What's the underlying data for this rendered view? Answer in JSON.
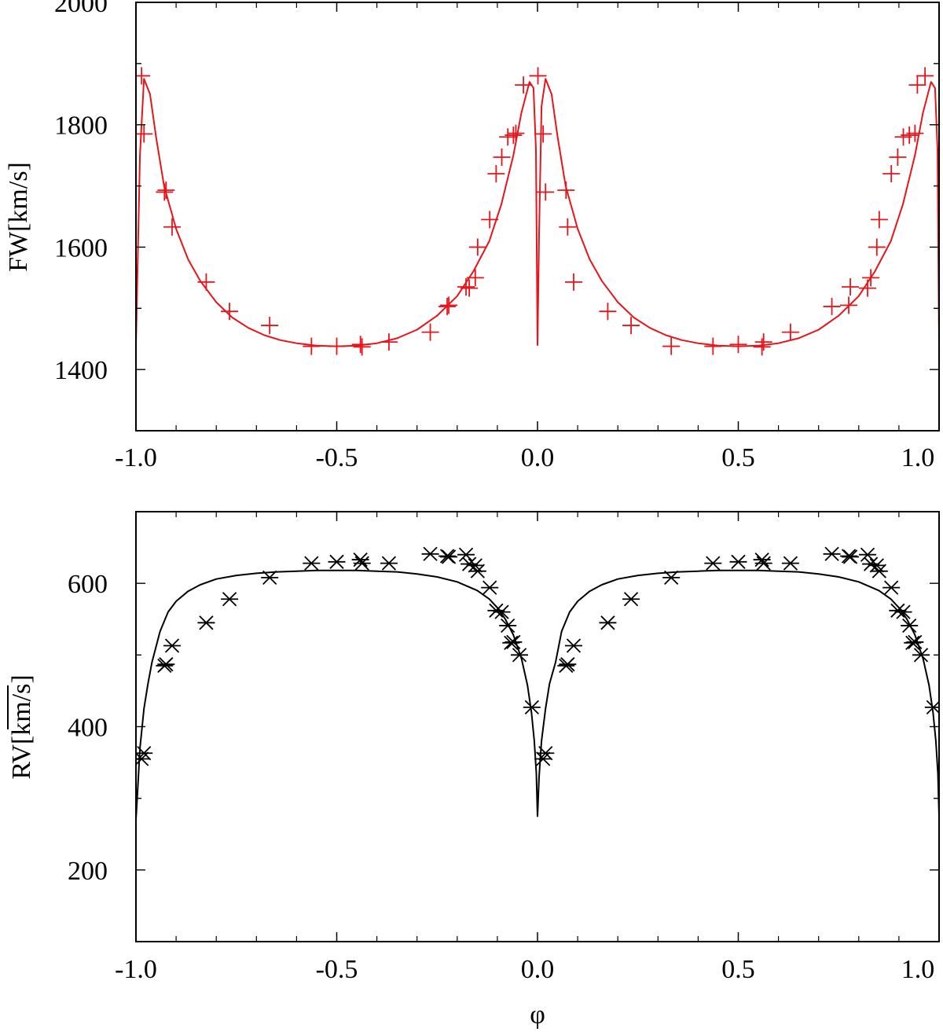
{
  "chart_data": [
    {
      "type": "scatter",
      "title": "",
      "xlabel": "",
      "ylabel": "FW[km/s]",
      "xlim": [
        -1.0,
        1.0
      ],
      "ylim": [
        1300,
        2000
      ],
      "xticks": [
        -1.0,
        -0.5,
        0.0,
        0.5,
        1.0
      ],
      "xtick_labels": [
        "-1.0",
        "-0.5",
        "0.0",
        "0.5",
        "1.0"
      ],
      "yticks": [
        1400,
        1600,
        1800,
        2000
      ],
      "ytick_labels": [
        "1400",
        "1600",
        "1800",
        "2000"
      ],
      "grid": false,
      "legend": "none",
      "color": "#e8141a",
      "series": [
        {
          "kind": "points",
          "marker": "plus",
          "x": [
            -0.986,
            -0.98,
            -0.929,
            -0.925,
            -0.91,
            -0.825,
            -0.767,
            -0.667,
            -0.563,
            -0.5,
            -0.441,
            -0.437,
            -0.37,
            -0.267,
            -0.225,
            -0.221,
            -0.178,
            -0.17,
            -0.155,
            -0.149,
            -0.119,
            -0.103,
            -0.089,
            -0.074,
            -0.06,
            -0.054,
            -0.035,
            0.001,
            0.014,
            0.02,
            0.071,
            0.075,
            0.09,
            0.175,
            0.233,
            0.333,
            0.437,
            0.5,
            0.559,
            0.563,
            0.63,
            0.733,
            0.775,
            0.779,
            0.822,
            0.83,
            0.845,
            0.851,
            0.881,
            0.897,
            0.911,
            0.926,
            0.94,
            0.946,
            0.965
          ],
          "y": [
            1880,
            1785,
            1690,
            1693,
            1633,
            1543,
            1495,
            1472,
            1438,
            1438,
            1441,
            1437,
            1445,
            1461,
            1503,
            1505,
            1535,
            1533,
            1550,
            1600,
            1645,
            1720,
            1747,
            1780,
            1783,
            1786,
            1865,
            1880,
            1785,
            1690,
            1693,
            1633,
            1543,
            1495,
            1472,
            1438,
            1438,
            1441,
            1437,
            1445,
            1461,
            1503,
            1505,
            1535,
            1533,
            1550,
            1600,
            1645,
            1720,
            1747,
            1780,
            1783,
            1786,
            1865,
            1880
          ]
        },
        {
          "kind": "line",
          "x": [
            -1.0,
            -0.99,
            -0.98,
            -0.965,
            -0.95,
            -0.93,
            -0.9,
            -0.87,
            -0.84,
            -0.8,
            -0.76,
            -0.72,
            -0.68,
            -0.64,
            -0.6,
            -0.55,
            -0.5,
            -0.45,
            -0.4,
            -0.35,
            -0.3,
            -0.25,
            -0.2,
            -0.16,
            -0.12,
            -0.09,
            -0.06,
            -0.04,
            -0.02,
            -0.01,
            -0.004,
            0.0,
            0.004,
            0.01,
            0.02,
            0.035,
            0.05,
            0.07,
            0.1,
            0.13,
            0.16,
            0.2,
            0.24,
            0.28,
            0.32,
            0.36,
            0.4,
            0.45,
            0.5,
            0.55,
            0.6,
            0.65,
            0.7,
            0.75,
            0.8,
            0.84,
            0.88,
            0.91,
            0.94,
            0.96,
            0.98,
            0.99,
            0.996,
            1.0,
            1.01,
            1.02
          ],
          "y": [
            1440,
            1750,
            1875,
            1850,
            1780,
            1700,
            1630,
            1580,
            1545,
            1510,
            1485,
            1468,
            1456,
            1448,
            1443,
            1439,
            1438,
            1439,
            1443,
            1451,
            1465,
            1488,
            1520,
            1560,
            1610,
            1670,
            1750,
            1820,
            1870,
            1860,
            1760,
            1440,
            1620,
            1830,
            1875,
            1850,
            1780,
            1700,
            1630,
            1580,
            1545,
            1510,
            1485,
            1468,
            1456,
            1448,
            1443,
            1439,
            1438,
            1439,
            1443,
            1451,
            1465,
            1488,
            1520,
            1560,
            1610,
            1670,
            1750,
            1820,
            1870,
            1860,
            1760,
            1440,
            1620,
            1830
          ]
        }
      ]
    },
    {
      "type": "scatter",
      "title": "",
      "xlabel": "φ",
      "ylabel": "RV[km/s]",
      "xlim": [
        -1.0,
        1.0
      ],
      "ylim": [
        100,
        700
      ],
      "xticks": [
        -1.0,
        -0.5,
        0.0,
        0.5,
        1.0
      ],
      "xtick_labels": [
        "-1.0",
        "-0.5",
        "0.0",
        "0.5",
        "1.0"
      ],
      "yticks": [
        200,
        400,
        600
      ],
      "ytick_labels": [
        "200",
        "400",
        "600"
      ],
      "grid": false,
      "legend": "none",
      "color": "#000000",
      "series": [
        {
          "kind": "points",
          "marker": "asterisk",
          "x": [
            -0.986,
            -0.98,
            -0.929,
            -0.925,
            -0.91,
            -0.825,
            -0.767,
            -0.667,
            -0.563,
            -0.5,
            -0.441,
            -0.437,
            -0.37,
            -0.267,
            -0.225,
            -0.221,
            -0.178,
            -0.17,
            -0.155,
            -0.149,
            -0.119,
            -0.103,
            -0.089,
            -0.074,
            -0.066,
            -0.06,
            -0.045,
            -0.014,
            0.014,
            0.02,
            0.071,
            0.075,
            0.09,
            0.175,
            0.233,
            0.333,
            0.437,
            0.5,
            0.559,
            0.563,
            0.63,
            0.733,
            0.775,
            0.779,
            0.822,
            0.83,
            0.845,
            0.851,
            0.881,
            0.897,
            0.911,
            0.926,
            0.934,
            0.94,
            0.955,
            0.986
          ],
          "y": [
            355,
            363,
            485,
            487,
            513,
            545,
            578,
            608,
            628,
            630,
            633,
            628,
            628,
            641,
            638,
            637,
            640,
            627,
            625,
            617,
            594,
            562,
            560,
            541,
            517,
            518,
            500,
            427,
            355,
            363,
            485,
            487,
            513,
            545,
            578,
            608,
            628,
            630,
            633,
            628,
            628,
            641,
            638,
            637,
            640,
            627,
            625,
            617,
            594,
            562,
            560,
            541,
            517,
            518,
            500,
            427
          ]
        },
        {
          "kind": "line",
          "x": [
            -1.0,
            -0.995,
            -0.99,
            -0.98,
            -0.97,
            -0.96,
            -0.94,
            -0.92,
            -0.9,
            -0.87,
            -0.84,
            -0.8,
            -0.75,
            -0.7,
            -0.65,
            -0.6,
            -0.55,
            -0.5,
            -0.45,
            -0.4,
            -0.35,
            -0.3,
            -0.25,
            -0.2,
            -0.15,
            -0.12,
            -0.1,
            -0.08,
            -0.06,
            -0.04,
            -0.025,
            -0.015,
            -0.008,
            -0.003,
            0.0,
            0.004,
            0.01,
            0.02,
            0.03,
            0.045,
            0.06,
            0.08,
            0.1,
            0.13,
            0.16,
            0.2,
            0.25,
            0.3,
            0.35,
            0.4,
            0.45,
            0.5,
            0.55,
            0.6,
            0.65,
            0.7,
            0.75,
            0.8,
            0.85,
            0.88,
            0.9,
            0.92,
            0.94,
            0.96,
            0.975,
            0.985,
            0.992,
            0.997,
            1.0,
            1.005,
            1.01,
            1.02
          ],
          "y": [
            270,
            320,
            370,
            425,
            460,
            490,
            533,
            560,
            575,
            589,
            598,
            606,
            611,
            614,
            616,
            617,
            618,
            618,
            618,
            617,
            616,
            613,
            609,
            602,
            590,
            578,
            566,
            550,
            528,
            495,
            458,
            420,
            380,
            335,
            275,
            330,
            380,
            425,
            460,
            490,
            533,
            560,
            575,
            589,
            598,
            606,
            611,
            614,
            616,
            617,
            618,
            618,
            618,
            617,
            616,
            613,
            609,
            602,
            590,
            578,
            566,
            550,
            528,
            495,
            458,
            420,
            380,
            335,
            275,
            300,
            325,
            350
          ]
        }
      ]
    }
  ]
}
